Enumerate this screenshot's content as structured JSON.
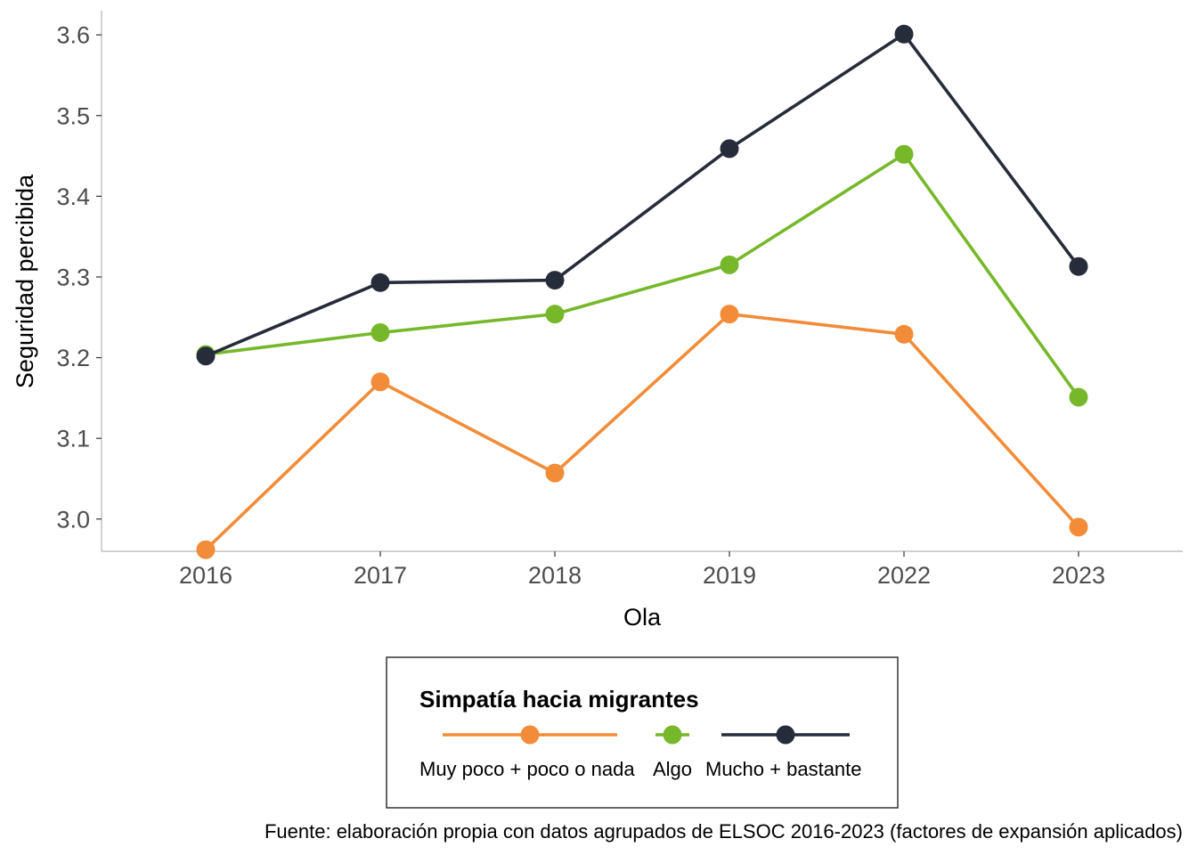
{
  "chart_data": {
    "type": "line",
    "x": [
      "2016",
      "2017",
      "2018",
      "2019",
      "2022",
      "2023"
    ],
    "xlabel": "Ola",
    "ylabel": "Seguridad percibida",
    "ylim": [
      2.96,
      3.63
    ],
    "yticks": [
      "3.0",
      "3.1",
      "3.2",
      "3.3",
      "3.4",
      "3.5",
      "3.6"
    ],
    "grid": false,
    "legend": {
      "title": "Simpatía hacia migrantes",
      "position": "bottom"
    },
    "series": [
      {
        "name": "Muy poco + poco o nada",
        "color": "#F28C38",
        "values": [
          2.962,
          3.17,
          3.057,
          3.254,
          3.229,
          2.99
        ]
      },
      {
        "name": "Algo",
        "color": "#76B82A",
        "values": [
          3.204,
          3.231,
          3.254,
          3.315,
          3.452,
          3.151
        ]
      },
      {
        "name": "Mucho + bastante",
        "color": "#272C3A",
        "values": [
          3.202,
          3.293,
          3.296,
          3.459,
          3.601,
          3.313
        ]
      }
    ],
    "caption": "Fuente: elaboración propia con datos agrupados de ELSOC 2016-2023 (factores de expansión aplicados)"
  }
}
